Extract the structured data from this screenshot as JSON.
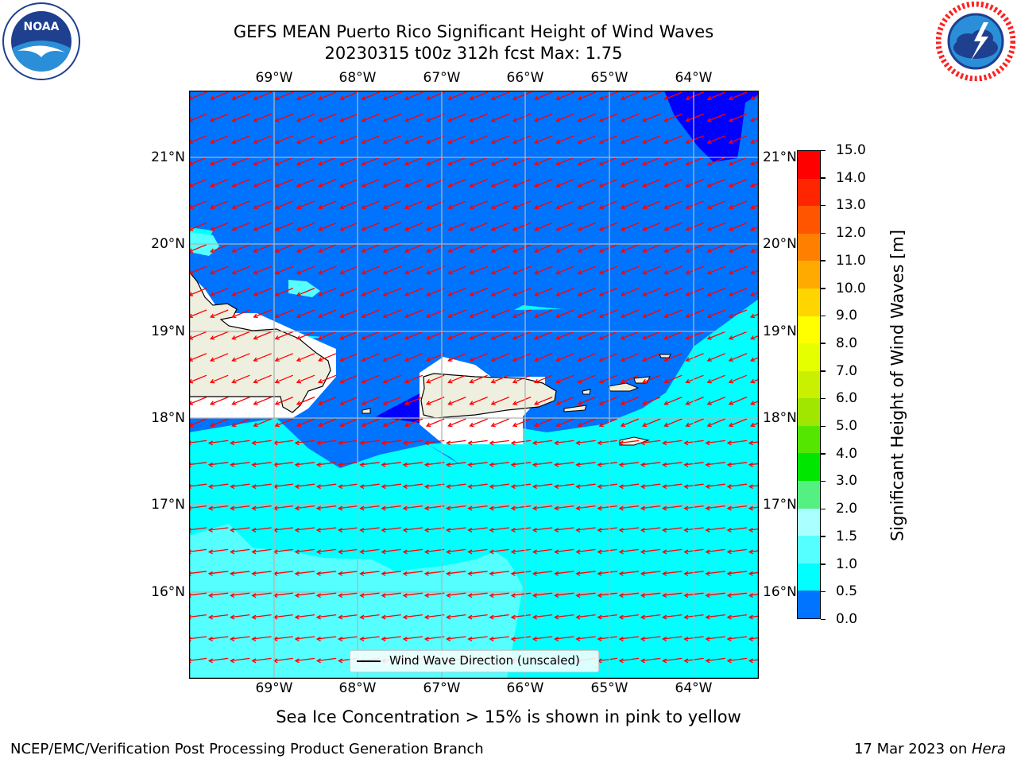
{
  "header": {
    "title_line1": "GEFS MEAN Puerto Rico Significant Height of Wind Waves",
    "title_line2": "20230315 t00z 312h fcst   Max: 1.75"
  },
  "logos": {
    "left": "NOAA",
    "left_ring": "NATIONAL OCEANIC AND ATMOSPHERIC ADMINISTRATION · U.S. DEPARTMENT OF COMMERCE",
    "right_ring": "NATIONAL WEATHER SERVICE"
  },
  "map": {
    "lon_labels": [
      "69°W",
      "68°W",
      "67°W",
      "66°W",
      "65°W",
      "64°W"
    ],
    "lat_labels": [
      "21°N",
      "20°N",
      "19°N",
      "18°N",
      "17°N",
      "16°N"
    ],
    "legend_label": "Wind Wave Direction (unscaled)",
    "colors": {
      "land": "#efefe0",
      "ocean_0": "#0000ff",
      "ocean_05": "#0073ff",
      "ocean_1": "#00ffff",
      "ocean_15": "#55ffff",
      "arrow": "#ff0000"
    }
  },
  "colorbar": {
    "title": "Significant Height of Wind Waves [m]",
    "ticks": [
      "15.0",
      "14.0",
      "13.0",
      "12.0",
      "11.0",
      "10.0",
      "9.0",
      "8.0",
      "7.0",
      "6.0",
      "5.0",
      "4.0",
      "3.0",
      "2.0",
      "1.5",
      "1.0",
      "0.5",
      "0.0"
    ],
    "colors": [
      "#ff0000",
      "#ff2500",
      "#ff5500",
      "#ff8000",
      "#ffaa00",
      "#ffd500",
      "#ffff00",
      "#e6ff00",
      "#c8f000",
      "#a0e600",
      "#55e600",
      "#00e600",
      "#55f082",
      "#aaffff",
      "#55ffff",
      "#00ffff",
      "#0073ff",
      "#0000ff"
    ]
  },
  "notes": {
    "sea_ice": "Sea Ice Concentration > 15% is shown in pink to yellow"
  },
  "footer": {
    "left": "NCEP/EMC/Verification Post Processing Product Generation Branch",
    "right_prefix": "17 Mar 2023 on ",
    "right_machine": "Hera"
  }
}
